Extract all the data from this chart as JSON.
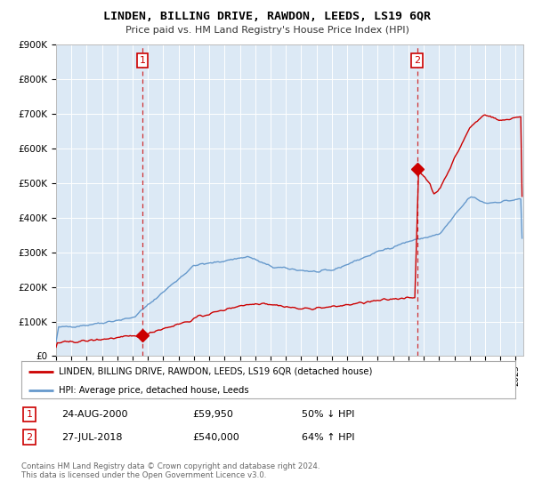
{
  "title": "LINDEN, BILLING DRIVE, RAWDON, LEEDS, LS19 6QR",
  "subtitle": "Price paid vs. HM Land Registry's House Price Index (HPI)",
  "legend_label_red": "LINDEN, BILLING DRIVE, RAWDON, LEEDS, LS19 6QR (detached house)",
  "legend_label_blue": "HPI: Average price, detached house, Leeds",
  "footer": "Contains HM Land Registry data © Crown copyright and database right 2024.\nThis data is licensed under the Open Government Licence v3.0.",
  "sale1_date": "24-AUG-2000",
  "sale1_price": 59950,
  "sale1_label": "1",
  "sale1_pct": "50% ↓ HPI",
  "sale1_year": 2000.648,
  "sale2_date": "27-JUL-2018",
  "sale2_price": 540000,
  "sale2_label": "2",
  "sale2_pct": "64% ↑ HPI",
  "sale2_year": 2018.575,
  "ylim": [
    0,
    900000
  ],
  "xlim_start": 1995.0,
  "xlim_end": 2025.5,
  "bg_color": "#dce9f5",
  "red_color": "#cc0000",
  "blue_color": "#6699cc",
  "white": "#ffffff"
}
